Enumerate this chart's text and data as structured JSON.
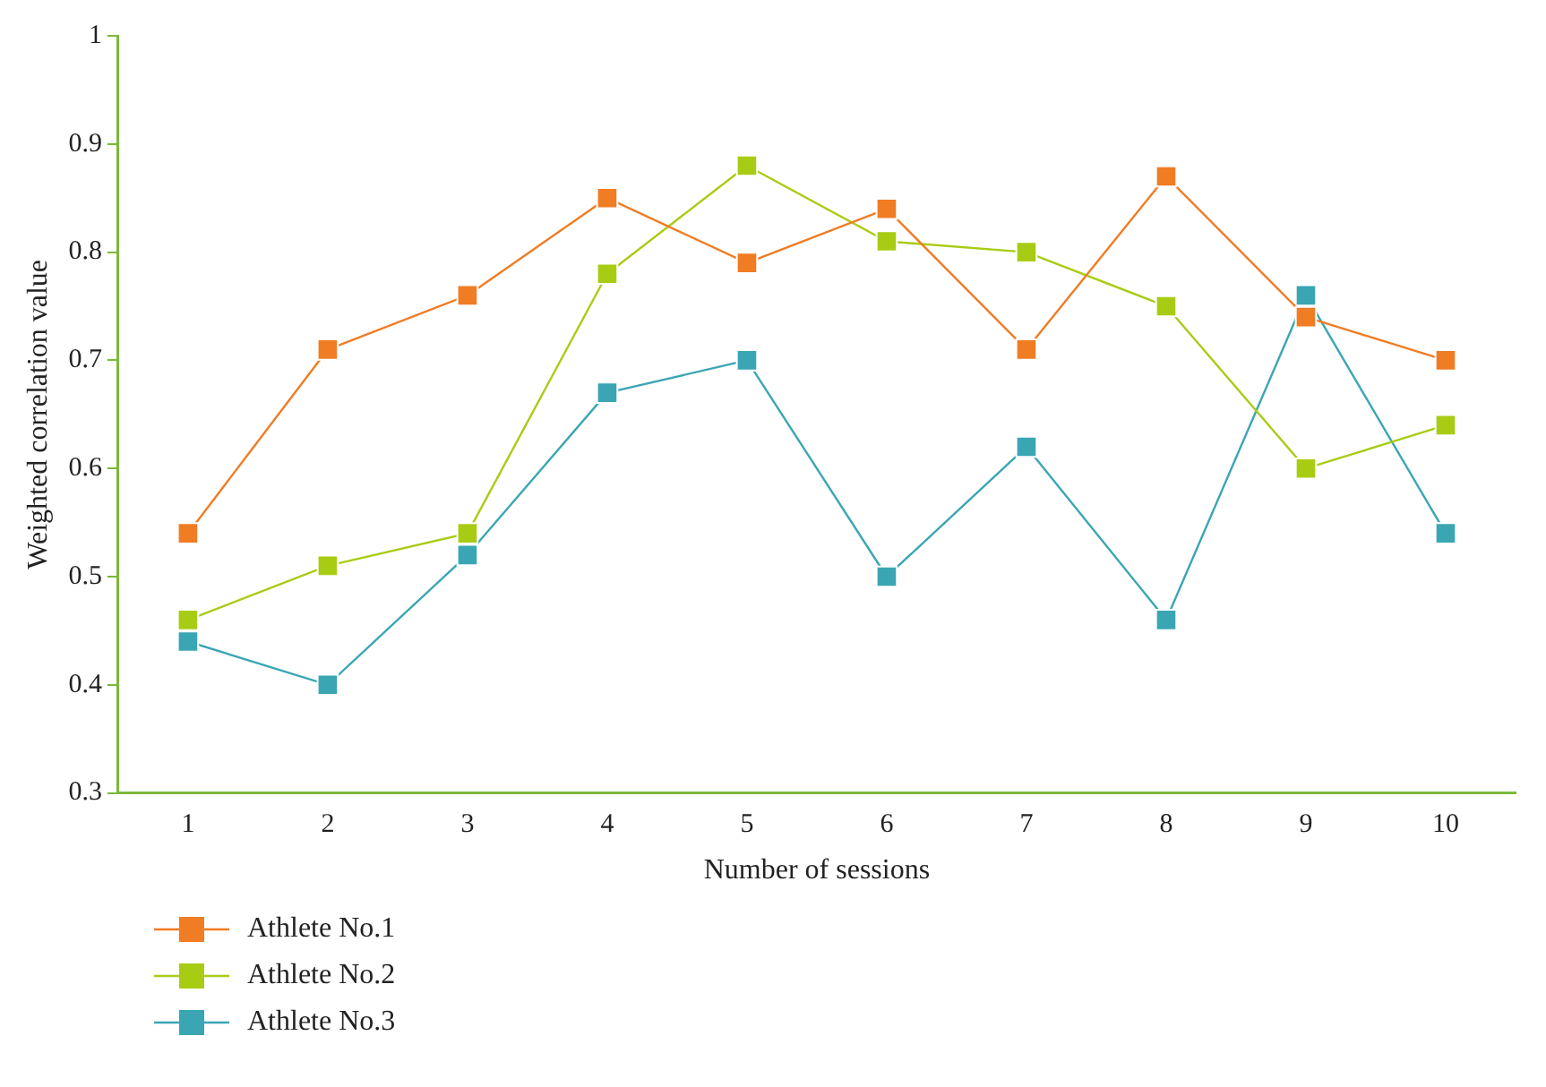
{
  "chart_data": {
    "type": "line",
    "xlabel": "Number of sessions",
    "ylabel": "Weighted correlation value",
    "categories": [
      "1",
      "2",
      "3",
      "4",
      "5",
      "6",
      "7",
      "8",
      "9",
      "10"
    ],
    "series": [
      {
        "name": "Athlete No.1",
        "color": "#f07c24",
        "values": [
          0.54,
          0.71,
          0.76,
          0.85,
          0.79,
          0.84,
          0.71,
          0.87,
          0.74,
          0.7
        ]
      },
      {
        "name": "Athlete No.2",
        "color": "#a8cc14",
        "values": [
          0.46,
          0.51,
          0.54,
          0.78,
          0.88,
          0.81,
          0.8,
          0.75,
          0.6,
          0.64
        ]
      },
      {
        "name": "Athlete No.3",
        "color": "#3aa6b4",
        "values": [
          0.44,
          0.4,
          0.52,
          0.67,
          0.7,
          0.5,
          0.62,
          0.46,
          0.76,
          0.54
        ]
      }
    ],
    "ylim": [
      0.3,
      1
    ],
    "yticks": [
      0.3,
      0.4,
      0.5,
      0.6,
      0.7,
      0.8,
      0.9,
      1
    ],
    "grid": false,
    "legend": "bottom left",
    "marker": "square",
    "line_style": "solid"
  }
}
